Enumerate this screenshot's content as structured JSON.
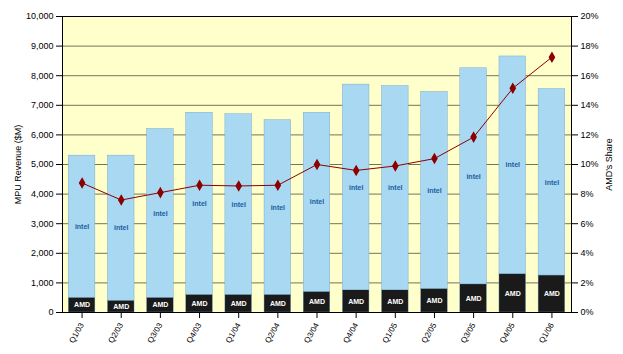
{
  "chart_data": {
    "type": "bar",
    "stacked": true,
    "ylabel": "MPU Revenue ($M)",
    "y2label": "AMD's Share",
    "categories": [
      "Q1/03",
      "Q2/03",
      "Q3/03",
      "Q4/03",
      "Q1/04",
      "Q2/04",
      "Q3/04",
      "Q4/04",
      "Q1/05",
      "Q2/05",
      "Q3/05",
      "Q4/05",
      "Q1/06"
    ],
    "series": [
      {
        "name": "AMD",
        "color": "#1a1a1a",
        "values": [
          500,
          400,
          500,
          600,
          600,
          600,
          700,
          750,
          750,
          800,
          950,
          1300,
          1250
        ]
      },
      {
        "name": "intel",
        "color": "#a8d8f2",
        "values": [
          4800,
          4900,
          5700,
          6150,
          6100,
          5900,
          6050,
          6950,
          6900,
          6650,
          7300,
          7350,
          6300
        ]
      },
      {
        "name": "AMD's Share",
        "type": "line",
        "axis": "y2",
        "color": "#8b0000",
        "marker": "diamond",
        "values": [
          8.75,
          7.6,
          8.1,
          8.6,
          8.55,
          8.6,
          10.0,
          9.6,
          9.9,
          10.4,
          11.85,
          15.15,
          17.25
        ]
      }
    ],
    "ylim": [
      0,
      10000
    ],
    "yticks": [
      0,
      {
        "value": 1000,
        "label": "1,000"
      },
      {
        "value": 2000,
        "label": "2,000"
      },
      {
        "value": 3000,
        "label": "3,000"
      },
      {
        "value": 4000,
        "label": "4,000"
      },
      {
        "value": 5000,
        "label": "5,000"
      },
      {
        "value": 6000,
        "label": "6,000"
      },
      {
        "value": 7000,
        "label": "7,000"
      },
      {
        "value": 8000,
        "label": "8,000"
      },
      {
        "value": 9000,
        "label": "9,000"
      },
      {
        "value": 10000,
        "label": "10,000"
      }
    ],
    "y2lim": [
      0,
      20
    ],
    "y2ticks": [
      {
        "value": 0,
        "label": "0%"
      },
      {
        "value": 2,
        "label": "2%"
      },
      {
        "value": 4,
        "label": "4%"
      },
      {
        "value": 6,
        "label": "6%"
      },
      {
        "value": 8,
        "label": "8%"
      },
      {
        "value": 10,
        "label": "10%"
      },
      {
        "value": 12,
        "label": "12%"
      },
      {
        "value": 14,
        "label": "14%"
      },
      {
        "value": 16,
        "label": "16%"
      },
      {
        "value": 18,
        "label": "18%"
      },
      {
        "value": 20,
        "label": "20%"
      }
    ],
    "grid": true
  }
}
